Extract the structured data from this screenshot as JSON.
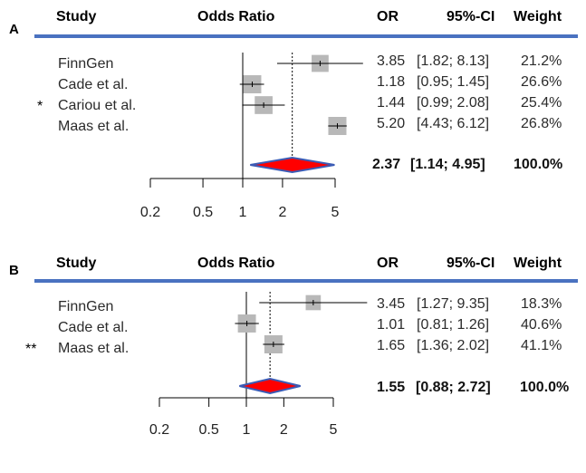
{
  "panels": [
    {
      "label": "A",
      "headers": {
        "study": "Study",
        "odds_ratio": "Odds Ratio",
        "or": "OR",
        "ci": "95%-CI",
        "weight": "Weight"
      },
      "studies": [
        {
          "name": "FinnGen",
          "marker": "",
          "or_text": "3.85",
          "ci_text": "[1.82; 8.13]",
          "weight_text": "21.2%"
        },
        {
          "name": "Cade et al.",
          "marker": "",
          "or_text": "1.18",
          "ci_text": "[0.95; 1.45]",
          "weight_text": "26.6%"
        },
        {
          "name": "Cariou et al.",
          "marker": "*",
          "or_text": "1.44",
          "ci_text": "[0.99; 2.08]",
          "weight_text": "25.4%"
        },
        {
          "name": "Maas et al.",
          "marker": "",
          "or_text": "5.20",
          "ci_text": "[4.43; 6.12]",
          "weight_text": "26.8%"
        }
      ],
      "pooled": {
        "or_text": "2.37",
        "ci_text": "[1.14; 4.95]",
        "weight_text": "100.0%"
      },
      "ticks": [
        "0.2",
        "0.5",
        "1",
        "2",
        "5"
      ]
    },
    {
      "label": "B",
      "headers": {
        "study": "Study",
        "odds_ratio": "Odds Ratio",
        "or": "OR",
        "ci": "95%-CI",
        "weight": "Weight"
      },
      "studies": [
        {
          "name": "FinnGen",
          "marker": "",
          "or_text": "3.45",
          "ci_text": "[1.27; 9.35]",
          "weight_text": "18.3%"
        },
        {
          "name": "Cade et al.",
          "marker": "",
          "or_text": "1.01",
          "ci_text": "[0.81; 1.26]",
          "weight_text": "40.6%"
        },
        {
          "name": "Maas et al.",
          "marker": "**",
          "or_text": "1.65",
          "ci_text": "[1.36; 2.02]",
          "weight_text": "41.1%"
        }
      ],
      "pooled": {
        "or_text": "1.55",
        "ci_text": "[0.88; 2.72]",
        "weight_text": "100.0%"
      },
      "ticks": [
        "0.2",
        "0.5",
        "1",
        "2",
        "5"
      ]
    }
  ],
  "colors": {
    "rule": "#4a72c0",
    "box": "#b8b8b8",
    "diamond_fill": "#ff0000",
    "diamond_edge": "#3b5bb5"
  },
  "chart_data": [
    {
      "type": "forest",
      "panel": "A",
      "scale": "log",
      "xlim": [
        0.2,
        5
      ],
      "xticks": [
        0.2,
        0.5,
        1,
        2,
        5
      ],
      "reference_line": 1,
      "studies": [
        {
          "name": "FinnGen",
          "or": 3.85,
          "ci_low": 1.82,
          "ci_high": 8.13,
          "weight": 21.2
        },
        {
          "name": "Cade et al.",
          "or": 1.18,
          "ci_low": 0.95,
          "ci_high": 1.45,
          "weight": 26.6
        },
        {
          "name": "Cariou et al.",
          "or": 1.44,
          "ci_low": 0.99,
          "ci_high": 2.08,
          "weight": 25.4
        },
        {
          "name": "Maas et al.",
          "or": 5.2,
          "ci_low": 4.43,
          "ci_high": 6.12,
          "weight": 26.8
        }
      ],
      "pooled": {
        "or": 2.37,
        "ci_low": 1.14,
        "ci_high": 4.95,
        "weight": 100.0
      }
    },
    {
      "type": "forest",
      "panel": "B",
      "scale": "log",
      "xlim": [
        0.2,
        5
      ],
      "xticks": [
        0.2,
        0.5,
        1,
        2,
        5
      ],
      "reference_line": 1,
      "studies": [
        {
          "name": "FinnGen",
          "or": 3.45,
          "ci_low": 1.27,
          "ci_high": 9.35,
          "weight": 18.3
        },
        {
          "name": "Cade et al.",
          "or": 1.01,
          "ci_low": 0.81,
          "ci_high": 1.26,
          "weight": 40.6
        },
        {
          "name": "Maas et al.",
          "or": 1.65,
          "ci_low": 1.36,
          "ci_high": 2.02,
          "weight": 41.1
        }
      ],
      "pooled": {
        "or": 1.55,
        "ci_low": 0.88,
        "ci_high": 2.72,
        "weight": 100.0
      }
    }
  ]
}
